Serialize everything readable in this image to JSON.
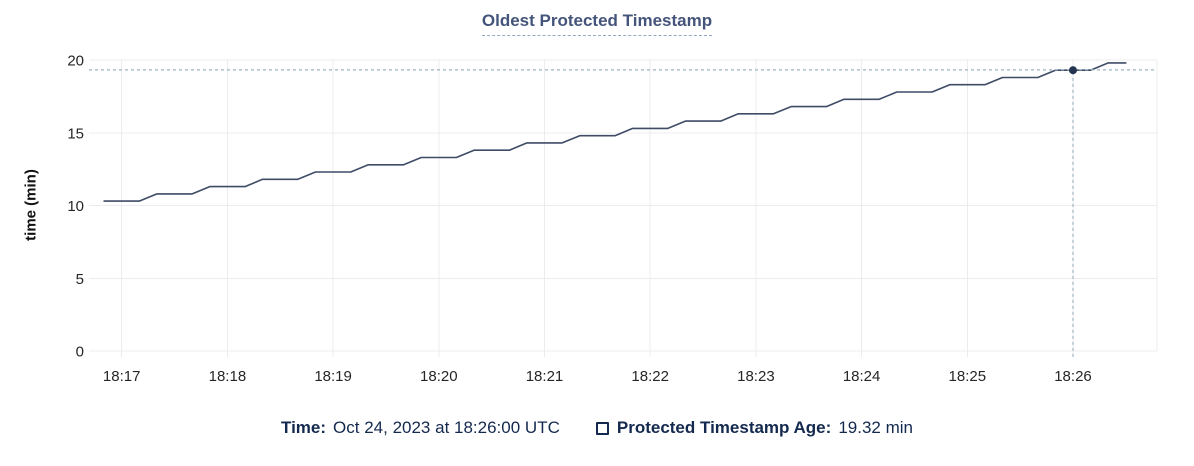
{
  "chart_data": {
    "type": "line",
    "title": "Oldest Protected Timestamp",
    "xlabel": "",
    "ylabel": "time (min)",
    "ylim": [
      0,
      20
    ],
    "y_ticks": [
      0,
      5,
      10,
      15,
      20
    ],
    "x_ticks": [
      "18:17",
      "18:18",
      "18:19",
      "18:20",
      "18:21",
      "18:22",
      "18:23",
      "18:24",
      "18:25",
      "18:26"
    ],
    "grid": true,
    "legend_position": "bottom",
    "series": [
      {
        "name": "Protected Timestamp Age",
        "unit": "min",
        "start_time": "18:16:50",
        "sample_interval_seconds": 10,
        "values": [
          10.3,
          10.3,
          10.3,
          10.8,
          10.8,
          10.8,
          11.3,
          11.3,
          11.3,
          11.8,
          11.8,
          11.8,
          12.3,
          12.3,
          12.3,
          12.8,
          12.8,
          12.8,
          13.3,
          13.3,
          13.3,
          13.8,
          13.8,
          13.8,
          14.3,
          14.3,
          14.3,
          14.8,
          14.8,
          14.8,
          15.3,
          15.3,
          15.3,
          15.8,
          15.8,
          15.8,
          16.3,
          16.3,
          16.3,
          16.8,
          16.8,
          16.8,
          17.3,
          17.3,
          17.3,
          17.8,
          17.8,
          17.8,
          18.3,
          18.3,
          18.3,
          18.8,
          18.8,
          18.8,
          19.3,
          19.3,
          19.3,
          19.8,
          19.8
        ]
      }
    ],
    "crosshair": {
      "time": "18:26:00",
      "time_label": "Oct 24, 2023 at 18:26:00 UTC",
      "value_min": 19.32,
      "value_label": "19.32 min"
    }
  },
  "legend": {
    "time_label": "Time:",
    "time_value": "Oct 24, 2023 at 18:26:00 UTC",
    "series_label": "Protected Timestamp Age:",
    "series_value": "19.32 min",
    "series_swatch": "unchecked-box"
  },
  "colors": {
    "line": "#3f4c66",
    "dot": "#243450",
    "crosshair": "#9eb4c0",
    "grid": "#ececec",
    "title": "#44547a",
    "title_underline": "#98a5c5",
    "legend_text": "#13294e",
    "tick_text": "#262626"
  }
}
